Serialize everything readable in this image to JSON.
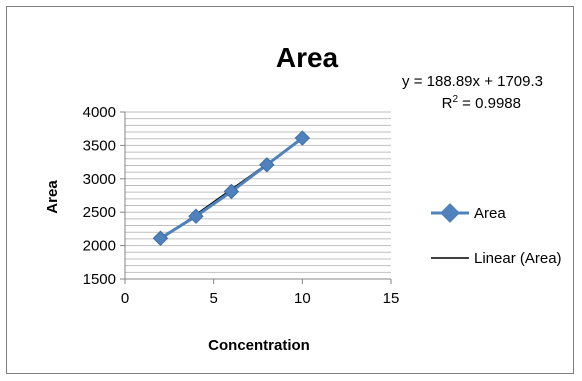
{
  "chart_data": {
    "type": "scatter",
    "title": "Area",
    "xlabel": "Concentration",
    "ylabel": "Area",
    "xlim": [
      0,
      15
    ],
    "ylim": [
      1500,
      4000
    ],
    "x_ticks": [
      "0",
      "5",
      "10",
      "15"
    ],
    "y_ticks": [
      "1500",
      "2000",
      "2500",
      "3000",
      "3500",
      "4000"
    ],
    "x": [
      2,
      4,
      6,
      8,
      10
    ],
    "y": [
      2110,
      2440,
      2810,
      3210,
      3610
    ],
    "trendline": {
      "slope": 188.89,
      "intercept": 1709.3,
      "x_range": [
        2,
        10
      ]
    },
    "equation": "y = 188.89x + 1709.3",
    "r2_prefix": "R",
    "r2_sup": "2",
    "r2_suffix": " = 0.9988",
    "legend": [
      "Area",
      "Linear (Area)"
    ],
    "legend_position": "right",
    "grid": true,
    "colors": {
      "series": "#4F81BD",
      "trendline": "#000000",
      "grid": "#bfbfbf",
      "axis": "#868686"
    }
  }
}
